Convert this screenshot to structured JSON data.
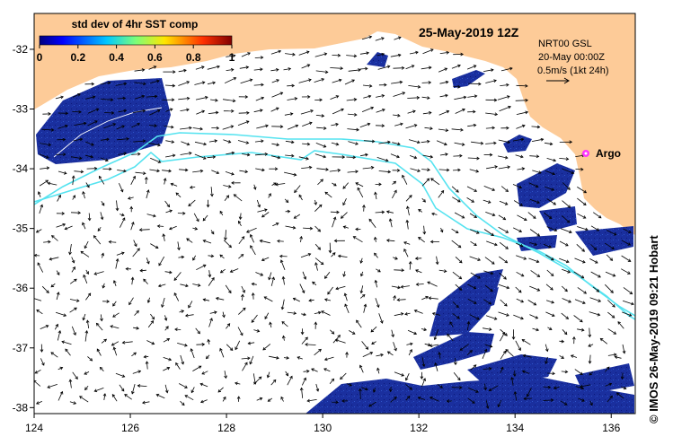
{
  "colorbar": {
    "title": "std dev of 4hr SST comp",
    "ticks": [
      "0",
      "0.2",
      "0.4",
      "0.6",
      "0.8",
      "1"
    ]
  },
  "header": {
    "date": "25-May-2019 12Z",
    "info_line1": "NRT00 GSL",
    "info_line2": "20-May 00:00Z",
    "scale_label": "0.5m/s (1kt 24h)"
  },
  "argo_label": "Argo",
  "credit": "© IMOS 26-May-2019 09:21 Hobart",
  "axes": {
    "x_ticks": [
      "124",
      "126",
      "128",
      "130",
      "132",
      "134",
      "136"
    ],
    "y_ticks": [
      "-32",
      "-33",
      "-34",
      "-35",
      "-36",
      "-37",
      "-38"
    ],
    "lon_range": [
      124,
      136.5
    ],
    "lat_range": [
      -38.1,
      -31.4
    ]
  },
  "colors": {
    "land": "#fdcb98",
    "ocean": "#ffffff",
    "data_fill": "#1a2f9e",
    "track": "#55e3f0",
    "argo": "#ff33ff",
    "arrow": "#000000"
  },
  "icons": {
    "argo": "argo-float-marker"
  }
}
